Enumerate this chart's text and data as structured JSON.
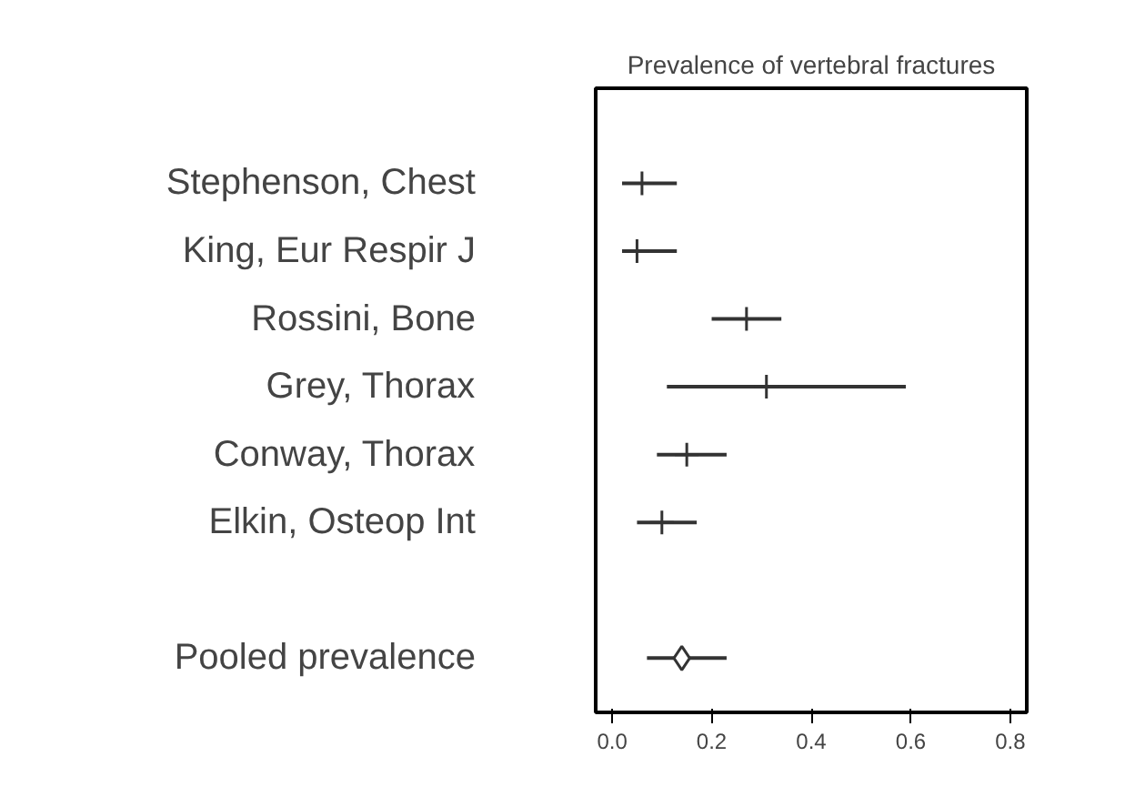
{
  "chart_data": {
    "type": "scatter",
    "orientation": "horizontal",
    "title": "Prevalence of vertebral fractures",
    "categories": [
      "Stephenson, Chest",
      "King, Eur Respir J",
      "Rossini, Bone",
      "Grey, Thorax",
      "Conway, Thorax",
      "Elkin, Osteop Int",
      null,
      "Pooled prevalence"
    ],
    "series": [
      {
        "color": "#333333",
        "marker": "cross",
        "values": [
          0.06,
          0.05,
          0.27,
          0.31,
          0.15,
          0.1,
          null,
          null
        ],
        "errors": [
          [
            0.02,
            0.13
          ],
          [
            0.02,
            0.13
          ],
          [
            0.2,
            0.34
          ],
          [
            0.11,
            0.59
          ],
          [
            0.09,
            0.23
          ],
          [
            0.05,
            0.17
          ],
          null,
          null
        ]
      },
      {
        "color": "#333333",
        "marker": "diamond",
        "values": [
          null,
          null,
          null,
          null,
          null,
          null,
          null,
          0.14
        ],
        "errors": [
          null,
          null,
          null,
          null,
          null,
          null,
          null,
          [
            0.07,
            0.23
          ]
        ]
      }
    ],
    "xlim": [
      -0.033,
      0.833
    ],
    "xticks": [
      {
        "value": 0,
        "label": "0.0"
      },
      0.2,
      0.4,
      0.6,
      0.8
    ],
    "grid": false
  }
}
